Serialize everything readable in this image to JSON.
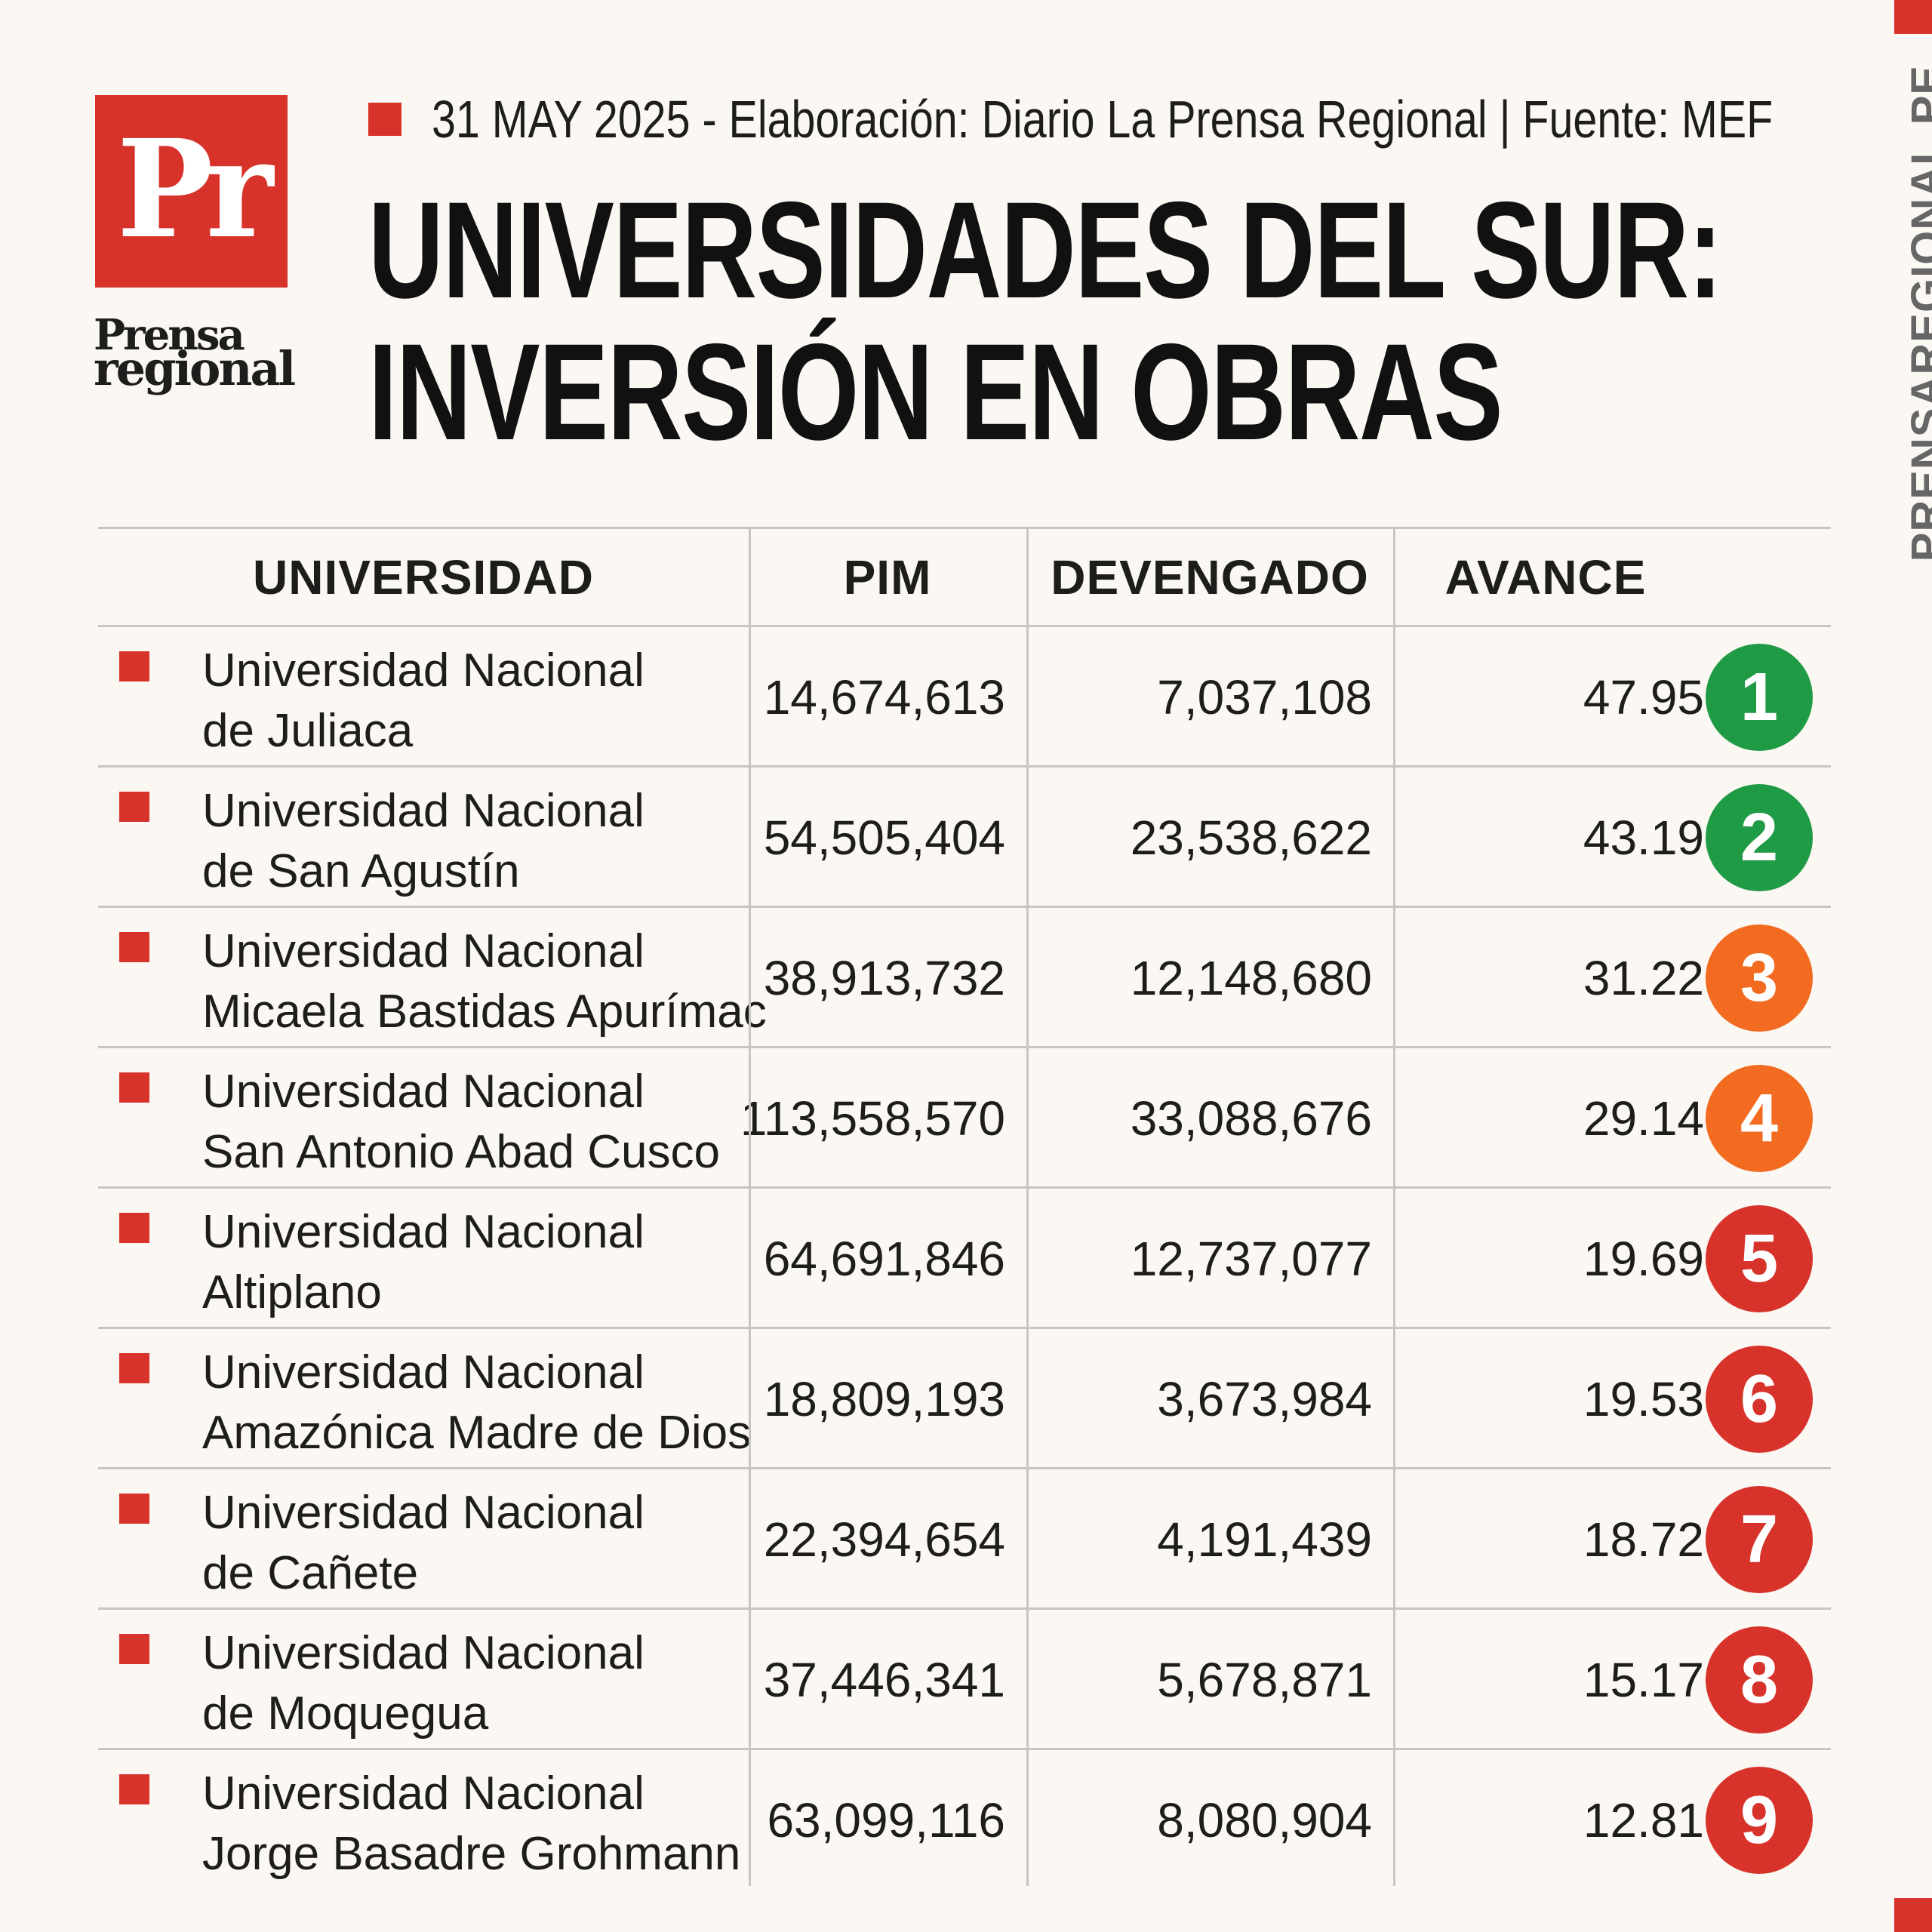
{
  "logo": {
    "letters": "Pr",
    "word_top": "Prensa",
    "word_bottom": "regional"
  },
  "header": {
    "meta": "31 MAY 2025 -  Elaboración: Diario La Prensa Regional | Fuente: MEF",
    "title_line1": "UNIVERSIDADES DEL SUR:",
    "title_line2": "INVERSIÓN EN OBRAS"
  },
  "side_text": "PRENSAREGIONAL.PE",
  "colors": {
    "brand_red": "#d7332b",
    "green": "#1f9a45",
    "orange": "#f26b21",
    "red": "#d7332b"
  },
  "table": {
    "headers": [
      "UNIVERSIDAD",
      "PIM",
      "DEVENGADO",
      "AVANCE"
    ],
    "rows": [
      {
        "name_line1": "Universidad Nacional",
        "name_line2": "de Juliaca",
        "pim": "14,674,613",
        "devengado": "7,037,108",
        "avance": "47.95",
        "rank": "1",
        "rank_color": "#1f9a45"
      },
      {
        "name_line1": "Universidad Nacional",
        "name_line2": "de San Agustín",
        "pim": "54,505,404",
        "devengado": "23,538,622",
        "avance": "43.19",
        "rank": "2",
        "rank_color": "#1f9a45"
      },
      {
        "name_line1": "Universidad Nacional",
        "name_line2": "Micaela Bastidas Apurímac",
        "pim": "38,913,732",
        "devengado": "12,148,680",
        "avance": "31.22",
        "rank": "3",
        "rank_color": "#f26b21"
      },
      {
        "name_line1": "Universidad Nacional",
        "name_line2": "San Antonio Abad Cusco",
        "pim": "113,558,570",
        "devengado": "33,088,676",
        "avance": "29.14",
        "rank": "4",
        "rank_color": "#f26b21"
      },
      {
        "name_line1": "Universidad Nacional",
        "name_line2": "Altiplano",
        "pim": "64,691,846",
        "devengado": "12,737,077",
        "avance": "19.69",
        "rank": "5",
        "rank_color": "#d7332b"
      },
      {
        "name_line1": "Universidad Nacional",
        "name_line2": "Amazónica Madre de Dios",
        "pim": "18,809,193",
        "devengado": "3,673,984",
        "avance": "19.53",
        "rank": "6",
        "rank_color": "#d7332b"
      },
      {
        "name_line1": "Universidad Nacional",
        "name_line2": "de Cañete",
        "pim": "22,394,654",
        "devengado": "4,191,439",
        "avance": "18.72",
        "rank": "7",
        "rank_color": "#d7332b"
      },
      {
        "name_line1": "Universidad Nacional",
        "name_line2": "de Moquegua",
        "pim": "37,446,341",
        "devengado": "5,678,871",
        "avance": "15.17",
        "rank": "8",
        "rank_color": "#d7332b"
      },
      {
        "name_line1": "Universidad Nacional",
        "name_line2": "Jorge Basadre Grohmann",
        "pim": "63,099,116",
        "devengado": "8,080,904",
        "avance": "12.81",
        "rank": "9",
        "rank_color": "#d7332b"
      }
    ]
  }
}
